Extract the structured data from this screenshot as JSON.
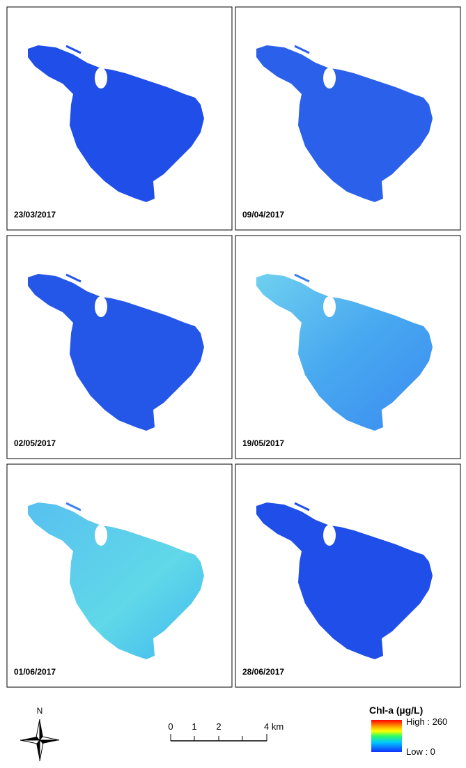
{
  "panels": [
    {
      "date": "23/03/2017"
    },
    {
      "date": "09/04/2017"
    },
    {
      "date": "02/05/2017"
    },
    {
      "date": "19/05/2017"
    },
    {
      "date": "01/06/2017"
    },
    {
      "date": "28/06/2017"
    }
  ],
  "north_arrow": {
    "label": "N"
  },
  "scale_bar": {
    "labels": [
      "0",
      "1",
      "2",
      "4 km"
    ]
  },
  "legend": {
    "title": "Chl-a (µg/L)",
    "high": "High : 260",
    "low": "Low : 0"
  }
}
